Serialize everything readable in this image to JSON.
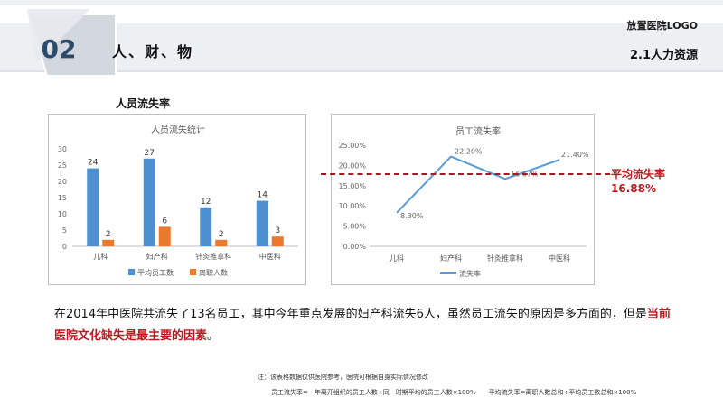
{
  "header": {
    "section_number": "02",
    "section_title": "人、财、物",
    "logo_text": "放置医院LOGO",
    "sub_title": "2.1人力资源"
  },
  "chart_heading": "人员流失率",
  "avg_label_line1": "平均流失率",
  "avg_label_line2": "16.88%",
  "paragraph": {
    "part1": "在2014年中医院共流失了13名员工，其中今年重点发展的妇产科流失6人，虽然员工流失的原因是多方面的，但是",
    "highlight": "当前医院文化缺失是最主要的因素",
    "part2": "。"
  },
  "notes": {
    "line1": "注：该表格数据仅供医院参考，医院可根据自身实际情况修改",
    "formula1": "员工流失率=一年离开组织的员工人数÷同一时期平均的员工人数×100%",
    "formula2": "平均流失率=离职人数总和÷平均员工数总和×100%"
  },
  "colors": {
    "bar_blue": "#4d8fcf",
    "bar_orange": "#e8792d",
    "line_blue": "#5b9bd5",
    "accent_red": "#c0161d",
    "badge_navy": "#2e4a6b"
  },
  "chart_data": [
    {
      "type": "bar",
      "title": "人员流失统计",
      "categories": [
        "儿科",
        "妇产科",
        "针灸推拿科",
        "中医科"
      ],
      "series": [
        {
          "name": "平均员工数",
          "values": [
            24,
            27,
            12,
            14
          ]
        },
        {
          "name": "离职人数",
          "values": [
            2,
            6,
            2,
            3
          ]
        }
      ],
      "ylim": [
        0,
        30
      ],
      "yticks": [
        "0",
        "5",
        "10",
        "15",
        "20",
        "25",
        "30"
      ],
      "legend": "bottom",
      "grid": false
    },
    {
      "type": "line",
      "title": "员工流失率",
      "categories": [
        "儿科",
        "妇产科",
        "针灸推拿科",
        "中医科"
      ],
      "series": [
        {
          "name": "流失率",
          "values": [
            8.3,
            22.2,
            16.67,
            21.4
          ]
        }
      ],
      "data_labels": [
        "8.30%",
        "22.20%",
        "16.67%",
        "21.40%"
      ],
      "ylim": [
        0,
        25
      ],
      "yticks": [
        "0.00%",
        "5.00%",
        "10.00%",
        "15.00%",
        "20.00%",
        "25.00%"
      ],
      "legend": "bottom",
      "grid": false
    }
  ]
}
